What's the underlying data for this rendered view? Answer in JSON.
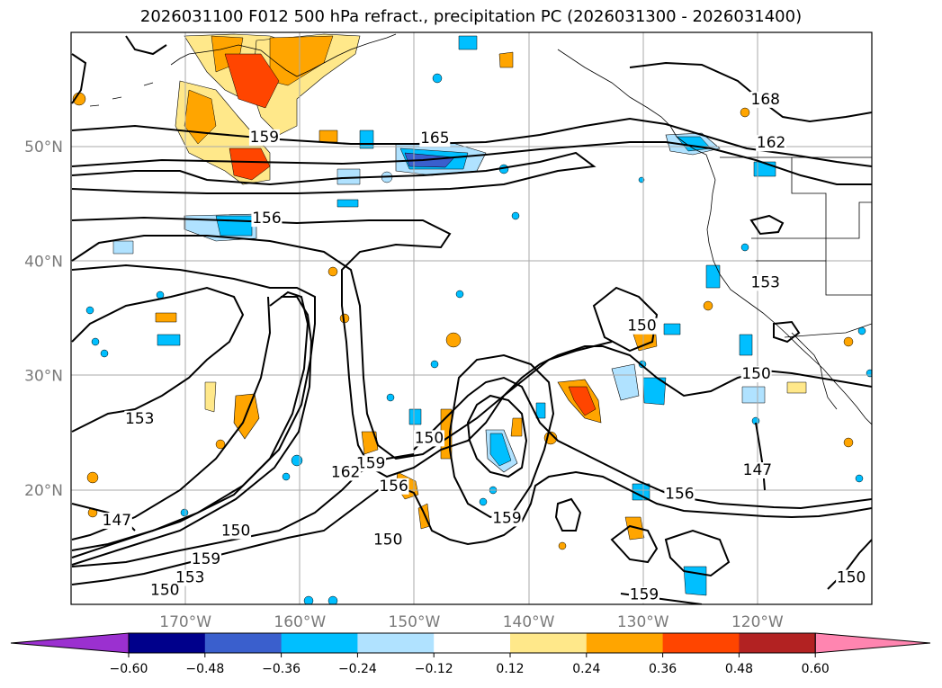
{
  "map": {
    "title": "2026031100 F012 500 hPa refract., precipitation PC (2026031300 - 2026031400)",
    "lat_labels": [
      {
        "text": "50°N",
        "lat": 50
      },
      {
        "text": "40°N",
        "lat": 40
      },
      {
        "text": "30°N",
        "lat": 30
      },
      {
        "text": "20°N",
        "lat": 20
      }
    ],
    "lon_labels": [
      {
        "text": "170°W",
        "lon": -170
      },
      {
        "text": "160°W",
        "lon": -160
      },
      {
        "text": "150°W",
        "lon": -150
      },
      {
        "text": "140°W",
        "lon": -140
      },
      {
        "text": "130°W",
        "lon": -130
      },
      {
        "text": "120°W",
        "lon": -120
      }
    ],
    "extent": {
      "lon_min": -180,
      "lon_max": -110,
      "lat_min": 10,
      "lat_max": 60
    },
    "contour_labels": [
      {
        "text": "168",
        "lon": -119.3,
        "lat": 53.8
      },
      {
        "text": "165",
        "lon": -148.2,
        "lat": 50.4
      },
      {
        "text": "162",
        "lon": -118.8,
        "lat": 50.0
      },
      {
        "text": "159",
        "lon": -163.1,
        "lat": 50.5
      },
      {
        "text": "156",
        "lon": -162.9,
        "lat": 43.4
      },
      {
        "text": "153",
        "lon": -119.3,
        "lat": 37.8
      },
      {
        "text": "150",
        "lon": -130.1,
        "lat": 34.0
      },
      {
        "text": "150",
        "lon": -120.1,
        "lat": 29.8
      },
      {
        "text": "153",
        "lon": -174.0,
        "lat": 25.9
      },
      {
        "text": "150",
        "lon": -148.7,
        "lat": 24.2
      },
      {
        "text": "159",
        "lon": -153.8,
        "lat": 22.0
      },
      {
        "text": "162",
        "lon": -156.0,
        "lat": 21.2
      },
      {
        "text": "156",
        "lon": -151.8,
        "lat": 20.0
      },
      {
        "text": "147",
        "lon": -120.0,
        "lat": 21.4
      },
      {
        "text": "156",
        "lon": -126.8,
        "lat": 19.3
      },
      {
        "text": "159",
        "lon": -141.9,
        "lat": 17.2
      },
      {
        "text": "147",
        "lon": -176.0,
        "lat": 17.0
      },
      {
        "text": "150",
        "lon": -165.6,
        "lat": 16.1
      },
      {
        "text": "150",
        "lon": -152.3,
        "lat": 15.3
      },
      {
        "text": "159",
        "lon": -168.2,
        "lat": 13.6
      },
      {
        "text": "153",
        "lon": -169.6,
        "lat": 12.0
      },
      {
        "text": "150",
        "lon": -171.8,
        "lat": 10.9
      },
      {
        "text": "159",
        "lon": -129.9,
        "lat": 10.5
      },
      {
        "text": "150",
        "lon": -111.8,
        "lat": 12.0
      }
    ]
  },
  "colorbar": {
    "colors": [
      "#9b30d0",
      "#00008b",
      "#3a5fcd",
      "#00bfff",
      "#b0e2ff",
      "#ffffff",
      "#ffe88a",
      "#ffa500",
      "#ff4500",
      "#b22222",
      "#ff85b0"
    ],
    "ticks": [
      "−0.60",
      "−0.48",
      "−0.36",
      "−0.24",
      "−0.12",
      "0.12",
      "0.24",
      "0.36",
      "0.48",
      "0.60"
    ]
  }
}
